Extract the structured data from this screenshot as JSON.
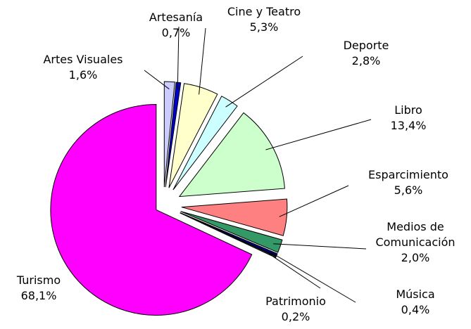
{
  "chart_data": {
    "type": "pie",
    "categories": [
      "Artes Visuales",
      "Artesanía",
      "Cine y Teatro",
      "Deporte",
      "Libro",
      "Esparcimiento",
      "Medios de Comunicación",
      "Música",
      "Patrimonio",
      "Turismo"
    ],
    "values": [
      1.6,
      0.7,
      5.3,
      2.8,
      13.4,
      5.6,
      2.0,
      0.4,
      0.2,
      68.1
    ],
    "value_labels": [
      "1,6%",
      "0,7%",
      "5,3%",
      "2,8%",
      "13,4%",
      "5,6%",
      "2,0%",
      "0,4%",
      "0,2%",
      "68,1%"
    ],
    "colors": [
      "#ccccff",
      "#0000cc",
      "#ffffcc",
      "#ccffff",
      "#ccffcc",
      "#ff8080",
      "#339966",
      "#000080",
      "#333333",
      "#ff00ff"
    ]
  }
}
